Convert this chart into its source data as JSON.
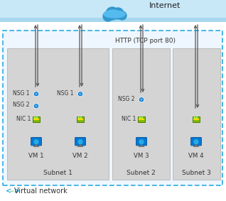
{
  "title": "Internet",
  "http_label": "HTTP (TCP port 80)",
  "vnet_label": "Virtual network",
  "subnet_labels": [
    "Subnet 1",
    "Subnet 2",
    "Subnet 3"
  ],
  "vm_labels": [
    "VM 1",
    "VM 2",
    "VM 3",
    "VM 4"
  ],
  "internet_bar_color": "#A8D8F0",
  "internet_bar_color2": "#C8E8F8",
  "vnet_border_color": "#29ABE2",
  "vnet_fill": "#EEF6FF",
  "subnet_fill": "#D4D4D4",
  "subnet_border": "#BBBBBB",
  "vm_blue": "#0078D4",
  "vm_blue2": "#29ABE2",
  "nic_green": "#7FBA00",
  "nic_dark": "#4C7A00",
  "nsg_blue": "#0078D4",
  "nsg_light": "#5BA7E0",
  "arrow_color": "#555555",
  "bg_color": "#FFFFFF",
  "font_color": "#333333",
  "cloud_dark": "#1E7AB8",
  "cloud_mid": "#3399CC",
  "cloud_light": "#55BBEE"
}
